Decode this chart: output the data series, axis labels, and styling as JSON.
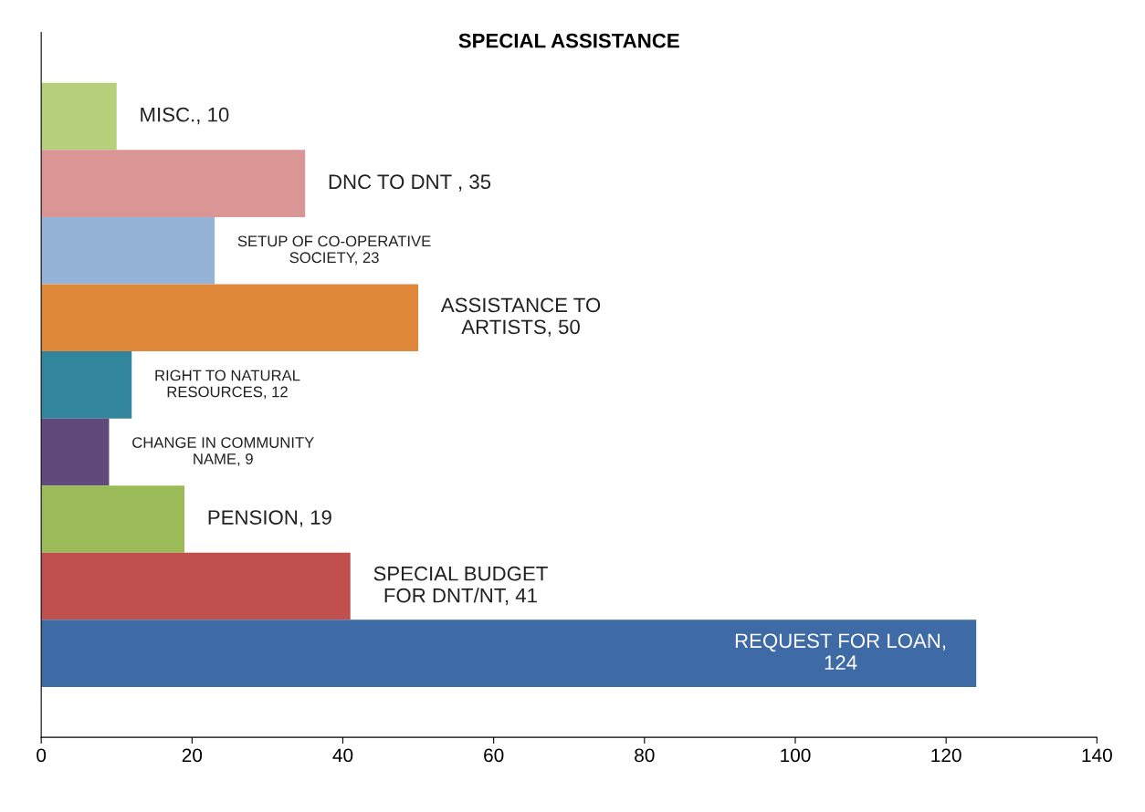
{
  "chart_data": {
    "type": "bar",
    "orientation": "horizontal",
    "title": "SPECIAL ASSISTANCE",
    "categories": [
      null,
      null,
      null,
      null,
      null,
      null,
      null,
      null,
      null
    ],
    "values": [
      10,
      35,
      23,
      50,
      12,
      9,
      19,
      41,
      124
    ],
    "colors": [
      "#b5cf7a",
      "#d99694",
      "#95b3d7",
      "#e0883a",
      "#31859c",
      "#604a7b",
      "#9bbb59",
      "#c0504d",
      "#3e6aa6"
    ],
    "value_labels": [
      "MISC., 10",
      "DNC TO DNT , 35",
      "SETUP OF CO-OPERATIVE\nSOCIETY, 23",
      "ASSISTANCE TO\nARTISTS, 50",
      "RIGHT TO NATURAL\nRESOURCES, 12",
      "CHANGE IN COMMUNITY\nNAME, 9",
      "PENSION, 19",
      "SPECIAL BUDGET\nFOR DNT/NT, 41",
      "REQUEST FOR LOAN,\n124"
    ],
    "xlim": [
      0,
      140
    ],
    "xticks": [
      0,
      20,
      40,
      60,
      80,
      100,
      120,
      140
    ],
    "tick_labels": "x",
    "grid": false,
    "legend": false
  }
}
